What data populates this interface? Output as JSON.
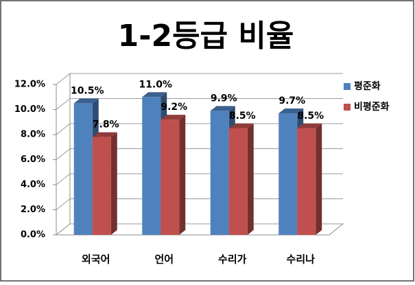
{
  "chart_data": {
    "type": "bar3d",
    "title": "1-2등급 비율",
    "categories": [
      "외국어",
      "언어",
      "수리가",
      "수리나"
    ],
    "series": [
      {
        "name": "평준화",
        "color": "#4f81bd",
        "values": [
          10.5,
          11.0,
          9.9,
          9.7
        ],
        "value_labels": [
          "10.5%",
          "11.0%",
          "9.9%",
          "9.7%"
        ]
      },
      {
        "name": "비평준화",
        "color": "#c0504d",
        "values": [
          7.8,
          9.2,
          8.5,
          8.5
        ],
        "value_labels": [
          "7.8%",
          "9.2%",
          "8.5%",
          "8.5%"
        ]
      }
    ],
    "ylim": [
      0,
      12
    ],
    "yticks": [
      {
        "value": 0,
        "label": "0.0%"
      },
      {
        "value": 2,
        "label": "2.0%"
      },
      {
        "value": 4,
        "label": "4.0%"
      },
      {
        "value": 6,
        "label": "6.0%"
      },
      {
        "value": 8,
        "label": "8.0%"
      },
      {
        "value": 10,
        "label": "10.0%"
      },
      {
        "value": 12,
        "label": "12.0%"
      }
    ],
    "grid": true,
    "legend": "right"
  }
}
